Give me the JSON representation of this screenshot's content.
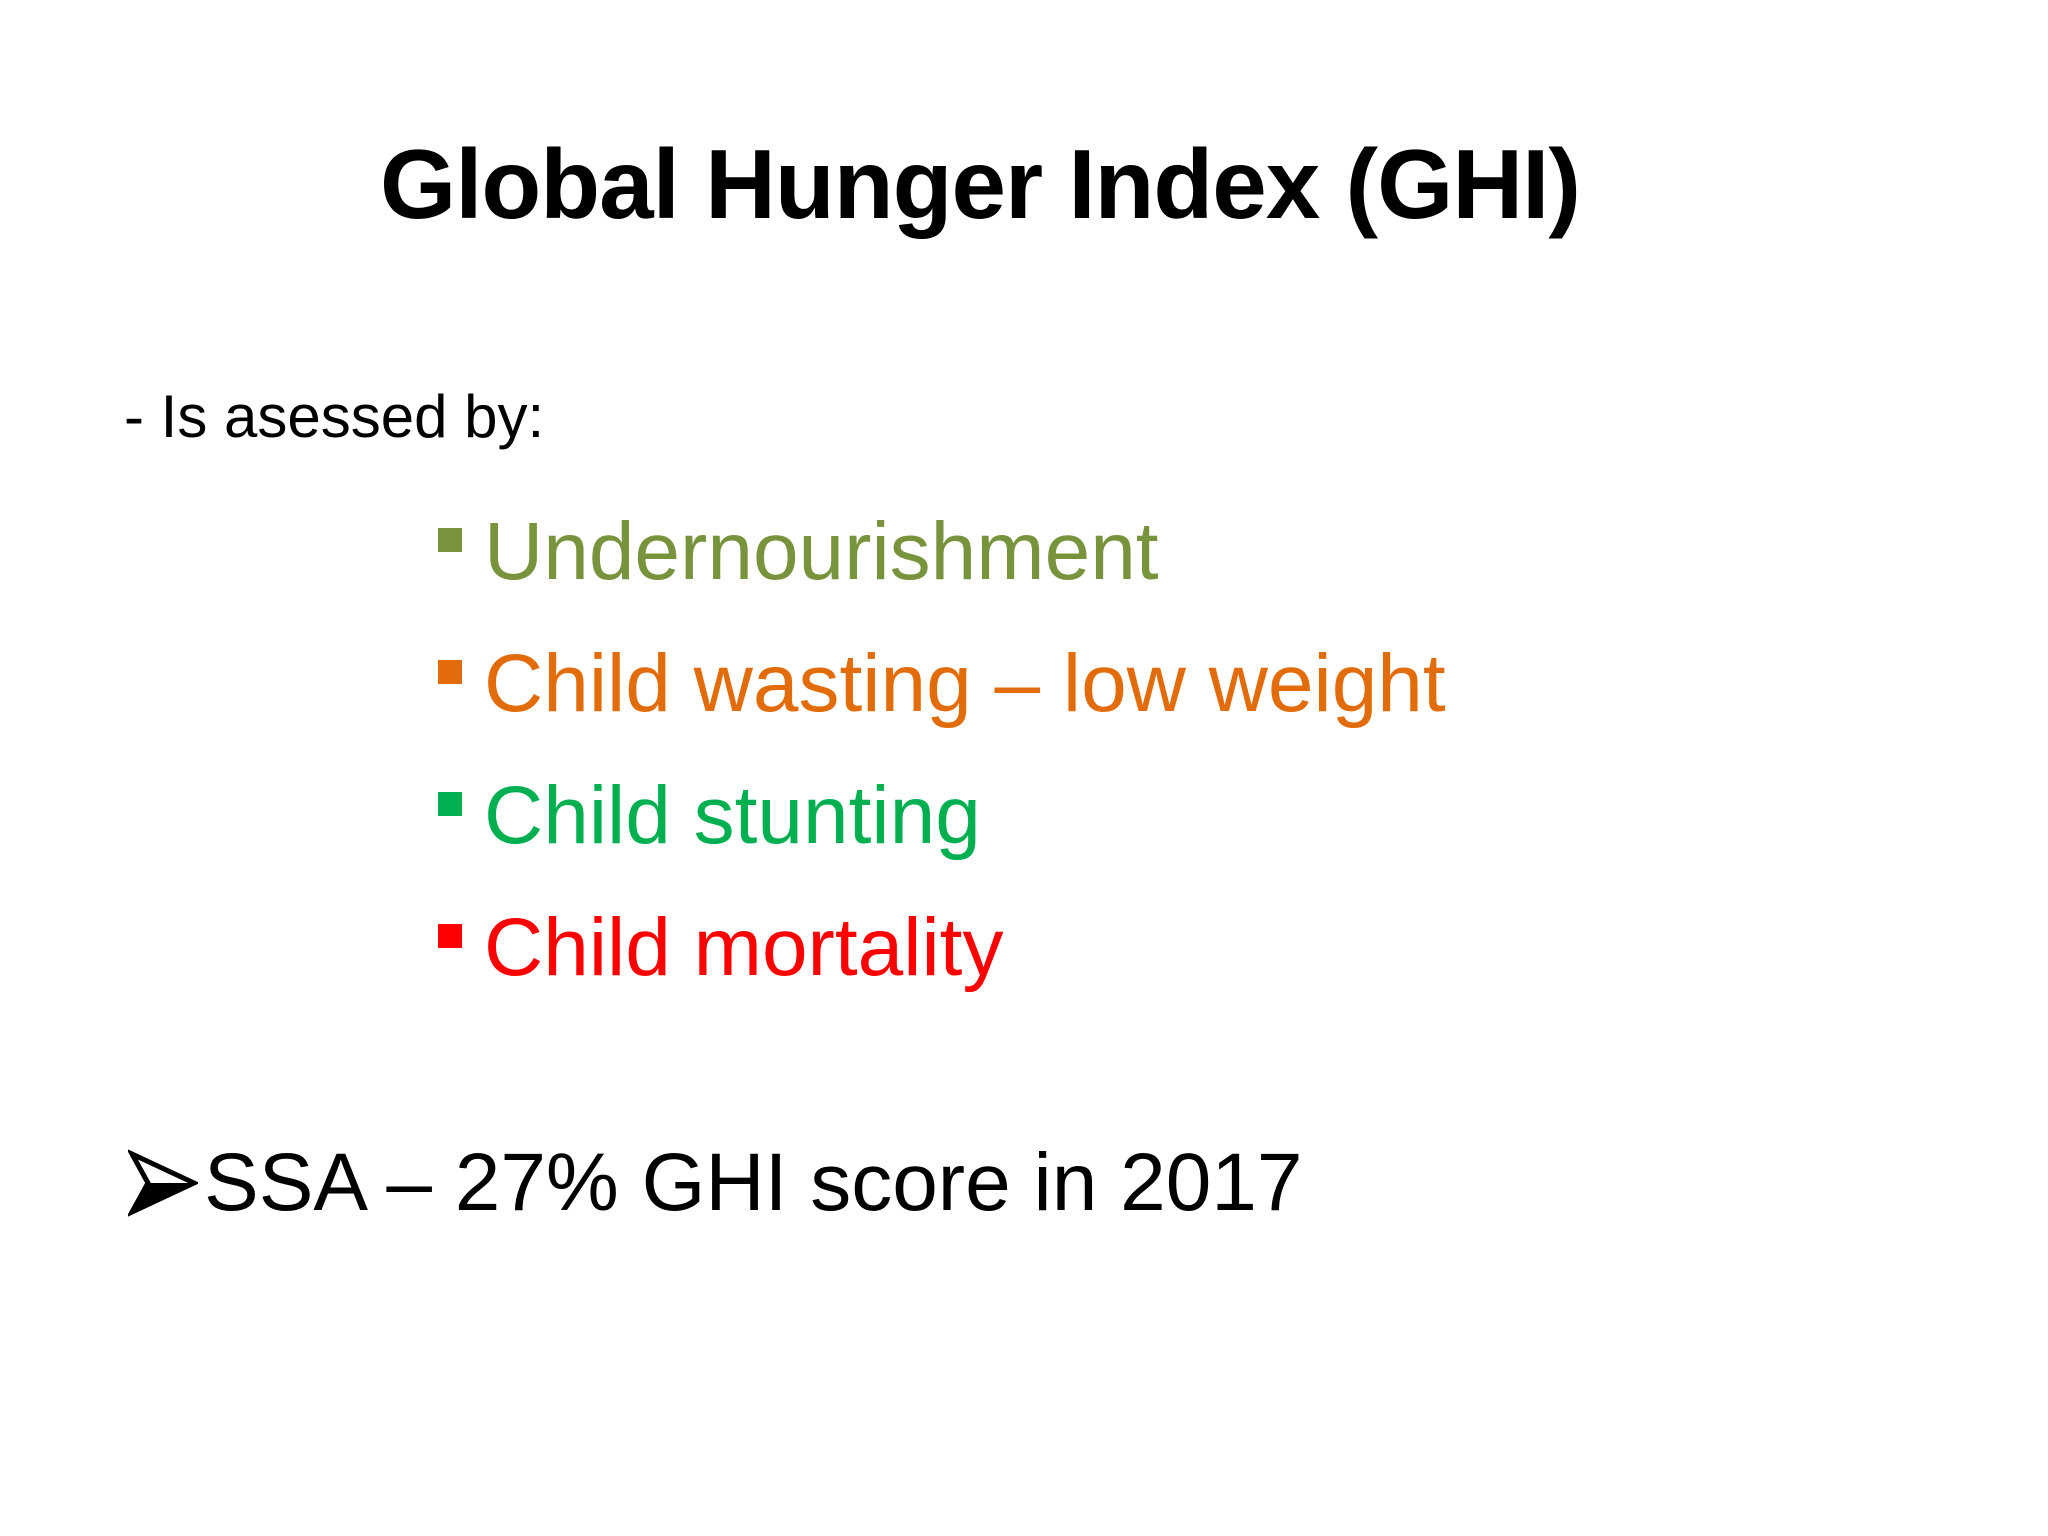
{
  "slide": {
    "title": "Global Hunger Index (GHI)",
    "intro": "- Is asessed by:",
    "bullets": [
      {
        "label": "Undernourishment",
        "color": "#77933c"
      },
      {
        "label": "Child wasting – low weight",
        "color": "#e36c0a"
      },
      {
        "label": "Child stunting",
        "color": "#00b050"
      },
      {
        "label": "Child mortality",
        "color": "#ff0000"
      }
    ],
    "summary": {
      "icon": "arrow-bullet-icon",
      "text": "SSA – 27% GHI score in 2017"
    }
  }
}
